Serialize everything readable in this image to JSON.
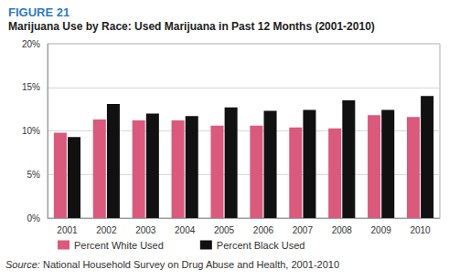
{
  "chart_data": {
    "type": "bar",
    "title": "FIGURE 21",
    "subtitle": "Marijuana Use by Race: Used Marijuana in Past 12 Months (2001-2010)",
    "annotations": [
      "Source: National Household Survey on Drug Abuse and Health, 2001-2010"
    ],
    "categories": [
      "2001",
      "2002",
      "2003",
      "2004",
      "2005",
      "2006",
      "2007",
      "2008",
      "2009",
      "2010"
    ],
    "series": [
      {
        "name": "Percent White Used",
        "color": "#d95a7c",
        "values": [
          9.8,
          11.3,
          11.2,
          11.2,
          10.6,
          10.6,
          10.4,
          10.3,
          11.8,
          11.6
        ]
      },
      {
        "name": "Percent Black Used",
        "color": "#111111",
        "values": [
          9.3,
          13.1,
          12.0,
          11.7,
          12.7,
          12.3,
          12.4,
          13.5,
          12.4,
          14.0
        ]
      }
    ],
    "ylim": [
      0,
      20
    ],
    "yticks": [
      {
        "value": 0,
        "label": "0%"
      },
      {
        "value": 5,
        "label": "5%"
      },
      {
        "value": 10,
        "label": "10%"
      },
      {
        "value": 15,
        "label": "15%"
      },
      {
        "value": 20,
        "label": "20%"
      }
    ],
    "grid": true,
    "legend": "bottom"
  }
}
